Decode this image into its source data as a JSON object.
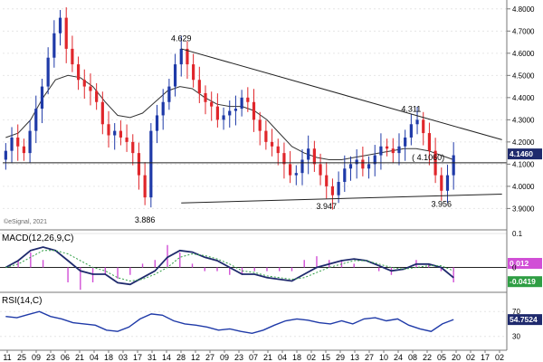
{
  "chart_data": [
    {
      "type": "candlestick",
      "panel": "price",
      "title": "",
      "xlabel": "",
      "ylabel": "",
      "ylim": [
        3.82,
        4.84
      ],
      "y_ticks": [
        "4.8000",
        "4.7000",
        "4.6000",
        "4.5000",
        "4.4000",
        "4.3000",
        "4.2000",
        "4.1000",
        "4.0000",
        "3.9000"
      ],
      "x_ticks": [
        "11",
        "25",
        "09",
        "23",
        "06",
        "21",
        "04",
        "18",
        "03",
        "17",
        "31",
        "14",
        "28",
        "12",
        "27",
        "09",
        "23",
        "07",
        "21",
        "04",
        "18",
        "02",
        "15",
        "29",
        "13",
        "27",
        "10",
        "24",
        "08",
        "22",
        "05",
        "20",
        "02",
        "17",
        "02"
      ],
      "close_series": [
        4.16,
        4.22,
        4.18,
        4.15,
        4.25,
        4.35,
        4.45,
        4.58,
        4.69,
        4.76,
        4.62,
        4.55,
        4.48,
        4.45,
        4.43,
        4.38,
        4.28,
        4.23,
        4.25,
        4.22,
        4.2,
        4.15,
        4.05,
        3.95,
        4.25,
        4.32,
        4.38,
        4.45,
        4.55,
        4.62,
        4.55,
        4.48,
        4.42,
        4.38,
        4.36,
        4.3,
        4.32,
        4.34,
        4.35,
        4.4,
        4.38,
        4.3,
        4.25,
        4.2,
        4.18,
        4.15,
        4.1,
        4.05,
        4.06,
        4.12,
        4.17,
        4.1,
        4.05,
        4.0,
        3.96,
        4.02,
        4.08,
        4.1,
        4.12,
        4.08,
        4.1,
        4.14,
        4.18,
        4.17,
        4.15,
        4.18,
        4.22,
        4.28,
        4.3,
        4.24,
        4.16,
        4.05,
        3.98,
        4.05,
        4.14
      ],
      "moving_average": [
        4.22,
        4.24,
        4.3,
        4.4,
        4.48,
        4.5,
        4.49,
        4.45,
        4.38,
        4.32,
        4.31,
        4.33,
        4.38,
        4.43,
        4.45,
        4.44,
        4.4,
        4.37,
        4.36,
        4.36,
        4.34,
        4.3,
        4.24,
        4.18,
        4.15,
        4.13,
        4.12,
        4.12,
        4.13,
        4.14,
        4.15,
        4.16,
        4.17,
        4.17,
        4.16,
        4.14,
        4.12
      ],
      "annotations": [
        {
          "label": "4.629",
          "value": 4.629,
          "x_index": 29
        },
        {
          "label": "3.886",
          "value": 3.886,
          "x_index": 23
        },
        {
          "label": "3.947",
          "value": 3.947,
          "x_index": 53
        },
        {
          "label": "4.311",
          "value": 4.311,
          "x_index": 67
        },
        {
          "label": "3.956",
          "value": 3.956,
          "x_index": 72
        },
        {
          "label": "( 4.1060)",
          "value": 4.106,
          "x_index": 74
        }
      ],
      "horizontal_line": 4.106,
      "trendlines": [
        {
          "name": "resistance",
          "from": [
            29,
            4.62
          ],
          "to": [
            82,
            4.21
          ]
        },
        {
          "name": "support",
          "from": [
            29,
            3.925
          ],
          "to": [
            82,
            3.965
          ]
        }
      ],
      "last_price_label": "4.1460",
      "last_price": 4.146,
      "watermark": "©eSignal, 2021"
    },
    {
      "type": "line",
      "panel": "macd",
      "title": "MACD(12,26,9,C)",
      "ylim": [
        -0.06,
        0.1
      ],
      "y_ticks": [
        "0.1",
        "0"
      ],
      "series": [
        {
          "name": "",
          "values": [
            0.0,
            0.02,
            0.05,
            0.06,
            0.05,
            0.02,
            -0.01,
            -0.02,
            -0.02,
            -0.045,
            -0.05,
            -0.03,
            -0.01,
            0.03,
            0.05,
            0.045,
            0.03,
            0.02,
            0.0,
            -0.02,
            -0.02,
            -0.03,
            -0.035,
            -0.04,
            -0.02,
            0.0,
            0.01,
            0.02,
            0.025,
            0.02,
            0.005,
            -0.01,
            -0.005,
            0.01,
            0.01,
            0.0,
            -0.03
          ]
        },
        {
          "name": "",
          "values": [
            0.0,
            0.01,
            0.03,
            0.05,
            0.05,
            0.04,
            0.02,
            0.0,
            -0.01,
            -0.03,
            -0.04,
            -0.035,
            -0.02,
            0.0,
            0.03,
            0.04,
            0.035,
            0.025,
            0.01,
            -0.01,
            -0.015,
            -0.025,
            -0.03,
            -0.035,
            -0.03,
            -0.015,
            0.0,
            0.01,
            0.02,
            0.02,
            0.01,
            0.0,
            -0.005,
            0.0,
            0.005,
            0.005,
            -0.01
          ]
        }
      ],
      "value_labels": [
        "0.012",
        "-0.0419"
      ]
    },
    {
      "type": "line",
      "panel": "rsi",
      "title": "RSI(14,C)",
      "ylim": [
        15,
        95
      ],
      "y_ticks": [
        "70",
        "30"
      ],
      "series": [
        {
          "name": "",
          "values": [
            62,
            60,
            65,
            70,
            62,
            58,
            52,
            50,
            48,
            40,
            38,
            45,
            58,
            66,
            64,
            55,
            50,
            48,
            45,
            40,
            42,
            38,
            35,
            40,
            48,
            55,
            58,
            56,
            52,
            50,
            55,
            50,
            58,
            60,
            55,
            58,
            48,
            42,
            38,
            50,
            57
          ]
        }
      ],
      "last_value_label": "54.7524"
    }
  ]
}
